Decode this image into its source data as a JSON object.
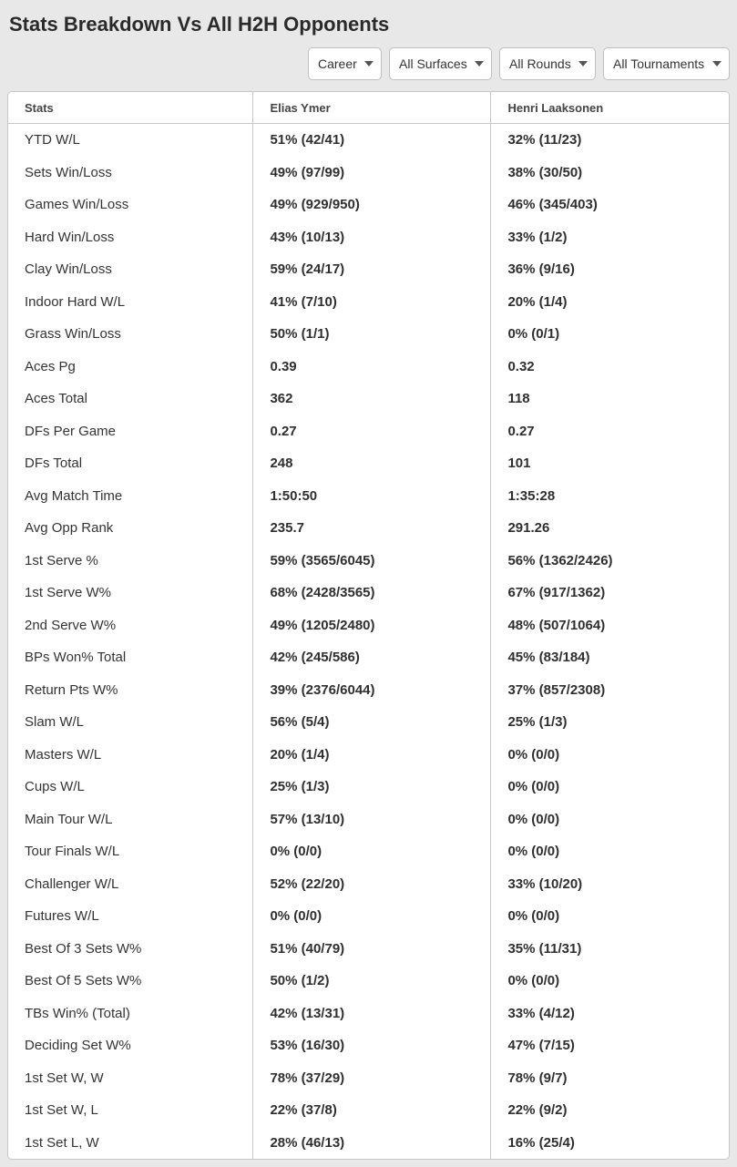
{
  "title": "Stats Breakdown Vs All H2H Opponents",
  "filters": {
    "period": {
      "selected": "Career",
      "options": [
        "Career"
      ]
    },
    "surface": {
      "selected": "All Surfaces",
      "options": [
        "All Surfaces"
      ]
    },
    "rounds": {
      "selected": "All Rounds",
      "options": [
        "All Rounds"
      ]
    },
    "tournaments": {
      "selected": "All Tournaments",
      "options": [
        "All Tournaments"
      ]
    }
  },
  "table": {
    "columns": [
      "Stats",
      "Elias Ymer",
      "Henri Laaksonen"
    ],
    "rows": [
      [
        "YTD W/L",
        "51% (42/41)",
        "32% (11/23)"
      ],
      [
        "Sets Win/Loss",
        "49% (97/99)",
        "38% (30/50)"
      ],
      [
        "Games Win/Loss",
        "49% (929/950)",
        "46% (345/403)"
      ],
      [
        "Hard Win/Loss",
        "43% (10/13)",
        "33% (1/2)"
      ],
      [
        "Clay Win/Loss",
        "59% (24/17)",
        "36% (9/16)"
      ],
      [
        "Indoor Hard W/L",
        "41% (7/10)",
        "20% (1/4)"
      ],
      [
        "Grass Win/Loss",
        "50% (1/1)",
        "0% (0/1)"
      ],
      [
        "Aces Pg",
        "0.39",
        "0.32"
      ],
      [
        "Aces Total",
        "362",
        "118"
      ],
      [
        "DFs Per Game",
        "0.27",
        "0.27"
      ],
      [
        "DFs Total",
        "248",
        "101"
      ],
      [
        "Avg Match Time",
        "1:50:50",
        "1:35:28"
      ],
      [
        "Avg Opp Rank",
        "235.7",
        "291.26"
      ],
      [
        "1st Serve %",
        "59% (3565/6045)",
        "56% (1362/2426)"
      ],
      [
        "1st Serve W%",
        "68% (2428/3565)",
        "67% (917/1362)"
      ],
      [
        "2nd Serve W%",
        "49% (1205/2480)",
        "48% (507/1064)"
      ],
      [
        "BPs Won% Total",
        "42% (245/586)",
        "45% (83/184)"
      ],
      [
        "Return Pts W%",
        "39% (2376/6044)",
        "37% (857/2308)"
      ],
      [
        "Slam W/L",
        "56% (5/4)",
        "25% (1/3)"
      ],
      [
        "Masters W/L",
        "20% (1/4)",
        "0% (0/0)"
      ],
      [
        "Cups W/L",
        "25% (1/3)",
        "0% (0/0)"
      ],
      [
        "Main Tour W/L",
        "57% (13/10)",
        "0% (0/0)"
      ],
      [
        "Tour Finals W/L",
        "0% (0/0)",
        "0% (0/0)"
      ],
      [
        "Challenger W/L",
        "52% (22/20)",
        "33% (10/20)"
      ],
      [
        "Futures W/L",
        "0% (0/0)",
        "0% (0/0)"
      ],
      [
        "Best Of 3 Sets W%",
        "51% (40/79)",
        "35% (11/31)"
      ],
      [
        "Best Of 5 Sets W%",
        "50% (1/2)",
        "0% (0/0)"
      ],
      [
        "TBs Win% (Total)",
        "42% (13/31)",
        "33% (4/12)"
      ],
      [
        "Deciding Set W%",
        "53% (16/30)",
        "47% (7/15)"
      ],
      [
        "1st Set W, W",
        "78% (37/29)",
        "78% (9/7)"
      ],
      [
        "1st Set W, L",
        "22% (37/8)",
        "22% (9/2)"
      ],
      [
        "1st Set L, W",
        "28% (46/13)",
        "16% (25/4)"
      ]
    ]
  }
}
